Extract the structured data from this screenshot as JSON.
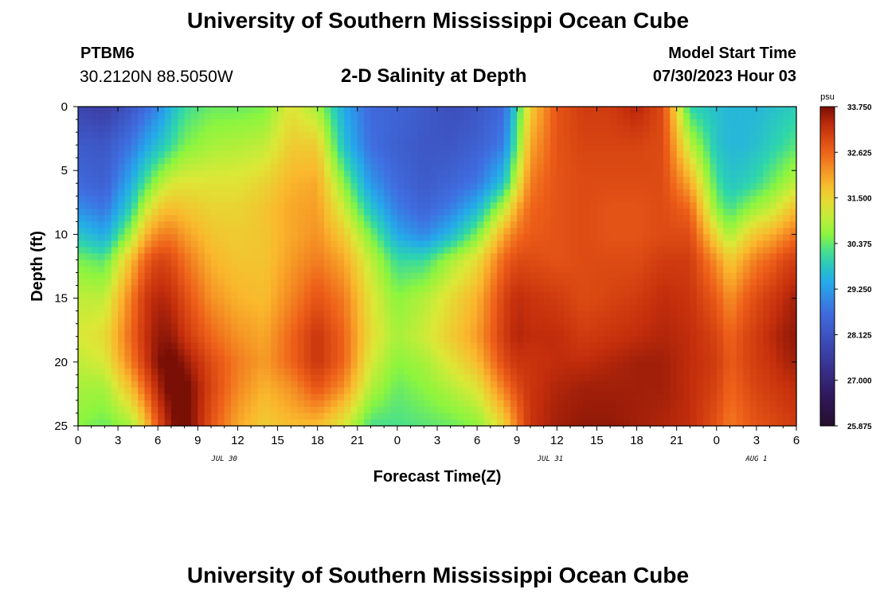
{
  "header": {
    "title": "University of Southern Mississippi Ocean Cube",
    "station": "PTBM6",
    "coords": "30.2120N  88.5050W",
    "subtitle": "2-D Salinity at Depth",
    "model_start_label": "Model Start Time",
    "model_start_value": "07/30/2023 Hour 03"
  },
  "footer": {
    "title": "University of Southern Mississippi Ocean Cube"
  },
  "chart_data": {
    "type": "heatmap",
    "title": "2-D Salinity at Depth",
    "xlabel": "Forecast Time(Z)",
    "ylabel": "Depth (ft)",
    "x_range_hours": [
      0,
      54
    ],
    "y_range_ft": [
      0,
      25
    ],
    "y_inverted": true,
    "x_tick_labels": [
      "0",
      "3",
      "6",
      "9",
      "12",
      "15",
      "18",
      "21",
      "0",
      "3",
      "6",
      "9",
      "12",
      "15",
      "18",
      "21",
      "0",
      "3",
      "6"
    ],
    "y_tick_labels": [
      "0",
      "5",
      "10",
      "15",
      "20",
      "25"
    ],
    "date_labels": [
      {
        "text": "JUL 30",
        "hour": 11
      },
      {
        "text": "JUL 31",
        "hour": 35.5
      },
      {
        "text": "AUG 1",
        "hour": 51
      }
    ],
    "colorbar": {
      "unit": "psu",
      "min": 25.875,
      "max": 33.75,
      "tick_labels": [
        "33.750",
        "32.625",
        "31.500",
        "30.375",
        "29.250",
        "28.125",
        "27.000",
        "25.875"
      ]
    },
    "grid": false,
    "profile_nodes_hours": [
      0,
      2,
      4,
      5,
      6,
      7,
      8,
      10,
      12,
      14,
      16,
      18,
      20,
      22,
      24,
      26,
      28,
      30,
      32,
      33,
      34,
      36,
      38,
      40,
      42,
      44,
      46,
      48,
      49,
      50,
      51,
      52,
      53,
      54
    ],
    "profile_depths_ft": [
      0,
      3,
      6,
      8,
      10,
      12,
      15,
      18,
      20,
      22,
      25
    ],
    "salinity_profiles": [
      [
        27.8,
        28.3,
        28.6,
        29.1,
        29.8,
        30.5,
        31.0,
        31.2,
        31.0,
        30.8,
        30.6
      ],
      [
        27.6,
        28.2,
        28.4,
        28.8,
        29.4,
        30.3,
        31.0,
        31.4,
        31.2,
        30.8,
        30.4
      ],
      [
        28.2,
        28.8,
        29.5,
        30.0,
        30.8,
        31.8,
        32.4,
        32.6,
        32.4,
        31.8,
        30.8
      ],
      [
        28.6,
        29.3,
        30.2,
        31.0,
        31.8,
        32.6,
        33.1,
        33.2,
        33.1,
        32.6,
        31.6
      ],
      [
        29.0,
        29.7,
        30.8,
        31.6,
        32.3,
        33.0,
        33.4,
        33.6,
        33.7,
        33.4,
        32.8
      ],
      [
        29.6,
        30.1,
        31.2,
        31.8,
        32.4,
        32.9,
        33.3,
        33.6,
        33.9,
        33.9,
        33.6
      ],
      [
        30.1,
        30.5,
        31.3,
        31.7,
        32.1,
        32.5,
        32.9,
        33.2,
        33.6,
        33.9,
        34.0
      ],
      [
        30.4,
        30.8,
        31.3,
        31.5,
        31.7,
        31.9,
        32.2,
        32.6,
        32.9,
        33.0,
        32.8
      ],
      [
        30.4,
        30.9,
        31.3,
        31.5,
        31.6,
        31.7,
        31.9,
        32.2,
        32.4,
        32.3,
        32.0
      ],
      [
        30.5,
        31.0,
        31.5,
        31.7,
        31.7,
        31.7,
        31.8,
        32.0,
        32.1,
        31.9,
        31.6
      ],
      [
        31.3,
        31.6,
        31.9,
        32.0,
        32.0,
        32.1,
        32.3,
        32.6,
        32.6,
        32.2,
        31.8
      ],
      [
        30.8,
        31.6,
        32.0,
        32.1,
        32.2,
        32.4,
        32.8,
        33.2,
        33.2,
        32.8,
        31.8
      ],
      [
        29.4,
        29.7,
        30.6,
        31.1,
        31.6,
        32.0,
        32.4,
        32.6,
        32.6,
        32.2,
        31.2
      ],
      [
        28.6,
        28.7,
        29.2,
        29.8,
        30.5,
        31.0,
        31.3,
        31.4,
        31.2,
        30.9,
        30.2
      ],
      [
        28.5,
        28.4,
        28.6,
        28.9,
        29.4,
        30.1,
        30.6,
        30.8,
        30.6,
        30.4,
        30.2
      ],
      [
        28.3,
        28.2,
        28.3,
        28.5,
        29.0,
        30.1,
        30.9,
        31.1,
        30.8,
        30.6,
        30.3
      ],
      [
        28.0,
        28.2,
        28.5,
        28.9,
        29.6,
        30.8,
        31.4,
        31.6,
        31.3,
        30.9,
        30.4
      ],
      [
        28.2,
        28.4,
        28.8,
        29.6,
        30.5,
        31.4,
        31.9,
        32.1,
        31.8,
        31.3,
        30.6
      ],
      [
        28.6,
        28.9,
        29.8,
        31.0,
        32.0,
        32.6,
        33.0,
        33.1,
        32.9,
        32.4,
        31.5
      ],
      [
        30.0,
        30.4,
        31.2,
        32.0,
        32.5,
        32.9,
        33.3,
        33.4,
        33.2,
        32.9,
        32.4
      ],
      [
        31.6,
        32.0,
        32.4,
        32.6,
        32.7,
        32.9,
        33.2,
        33.3,
        33.2,
        33.2,
        33.2
      ],
      [
        32.8,
        32.8,
        32.8,
        32.8,
        32.8,
        32.8,
        33.1,
        33.3,
        33.3,
        33.4,
        33.5
      ],
      [
        33.1,
        33.0,
        32.9,
        32.9,
        32.9,
        32.9,
        32.9,
        33.1,
        33.3,
        33.5,
        33.6
      ],
      [
        33.1,
        33.0,
        32.9,
        32.8,
        32.8,
        32.9,
        33.0,
        33.2,
        33.4,
        33.5,
        33.6
      ],
      [
        33.4,
        33.0,
        32.9,
        32.8,
        32.8,
        32.9,
        33.1,
        33.3,
        33.5,
        33.5,
        33.5
      ],
      [
        32.9,
        32.9,
        32.9,
        32.9,
        32.9,
        33.1,
        33.3,
        33.4,
        33.5,
        33.5,
        33.4
      ],
      [
        30.0,
        31.0,
        32.0,
        32.6,
        32.9,
        33.1,
        33.2,
        33.3,
        33.3,
        33.3,
        33.3
      ],
      [
        29.7,
        29.8,
        30.2,
        30.6,
        31.4,
        32.2,
        32.7,
        33.0,
        33.1,
        33.0,
        32.8
      ],
      [
        29.6,
        29.6,
        29.8,
        30.2,
        30.8,
        31.6,
        32.2,
        32.6,
        32.7,
        32.6,
        32.4
      ],
      [
        29.6,
        29.6,
        29.9,
        30.5,
        31.3,
        32.0,
        32.6,
        32.9,
        32.9,
        32.8,
        32.6
      ],
      [
        29.6,
        29.7,
        30.1,
        30.8,
        31.7,
        32.4,
        32.9,
        33.1,
        33.1,
        33.0,
        32.8
      ],
      [
        29.7,
        29.9,
        30.4,
        31.0,
        31.9,
        32.6,
        33.1,
        33.3,
        33.2,
        33.1,
        32.9
      ],
      [
        29.8,
        30.1,
        30.7,
        31.4,
        32.2,
        32.9,
        33.3,
        33.5,
        33.4,
        33.2,
        33.0
      ],
      [
        29.9,
        30.3,
        31.0,
        31.8,
        32.5,
        33.1,
        33.5,
        33.6,
        33.5,
        33.3,
        33.1
      ]
    ]
  }
}
